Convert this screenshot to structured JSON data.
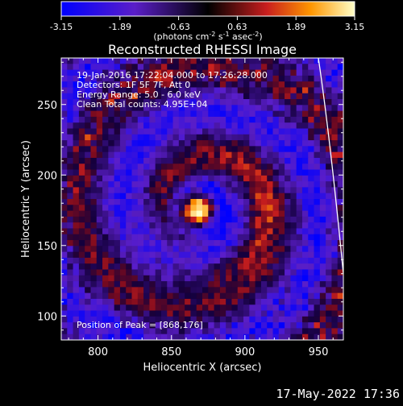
{
  "chart_data": {
    "type": "heatmap",
    "title": "Reconstructed RHESSI Image",
    "xlabel": "Heliocentric X (arcsec)",
    "ylabel": "Heliocentric Y (arcsec)",
    "xlim": [
      775,
      967
    ],
    "ylim": [
      83,
      283
    ],
    "x_ticks": [
      800,
      850,
      900,
      950
    ],
    "y_ticks": [
      100,
      150,
      200,
      250
    ],
    "colorbar": {
      "min": -3.15,
      "max": 3.15,
      "ticks": [
        "-3.15",
        "-1.89",
        "-0.63",
        "0.63",
        "1.89",
        "3.15"
      ],
      "unit_label": "(photons cm",
      "unit_exp1": "-2",
      "unit_mid": " s",
      "unit_exp2": "-1",
      "unit_mid2": " asec",
      "unit_exp3": "-2",
      "unit_end": ")"
    },
    "annotations": [
      "19-Jan-2016 17:22:04.000 to 17:26:28.000",
      "Detectors: 1F 5F 7F, Att 0",
      "Energy Range: 5.0 - 6.0 keV",
      "Clean     Total counts: 4.95E+04"
    ],
    "peak_label": "Position of Peak = [868,176]",
    "peak": [
      868,
      176
    ],
    "limb_arc": [
      [
        950,
        283
      ],
      [
        967,
        130
      ]
    ]
  },
  "timestamp": "17-May-2022 17:36"
}
